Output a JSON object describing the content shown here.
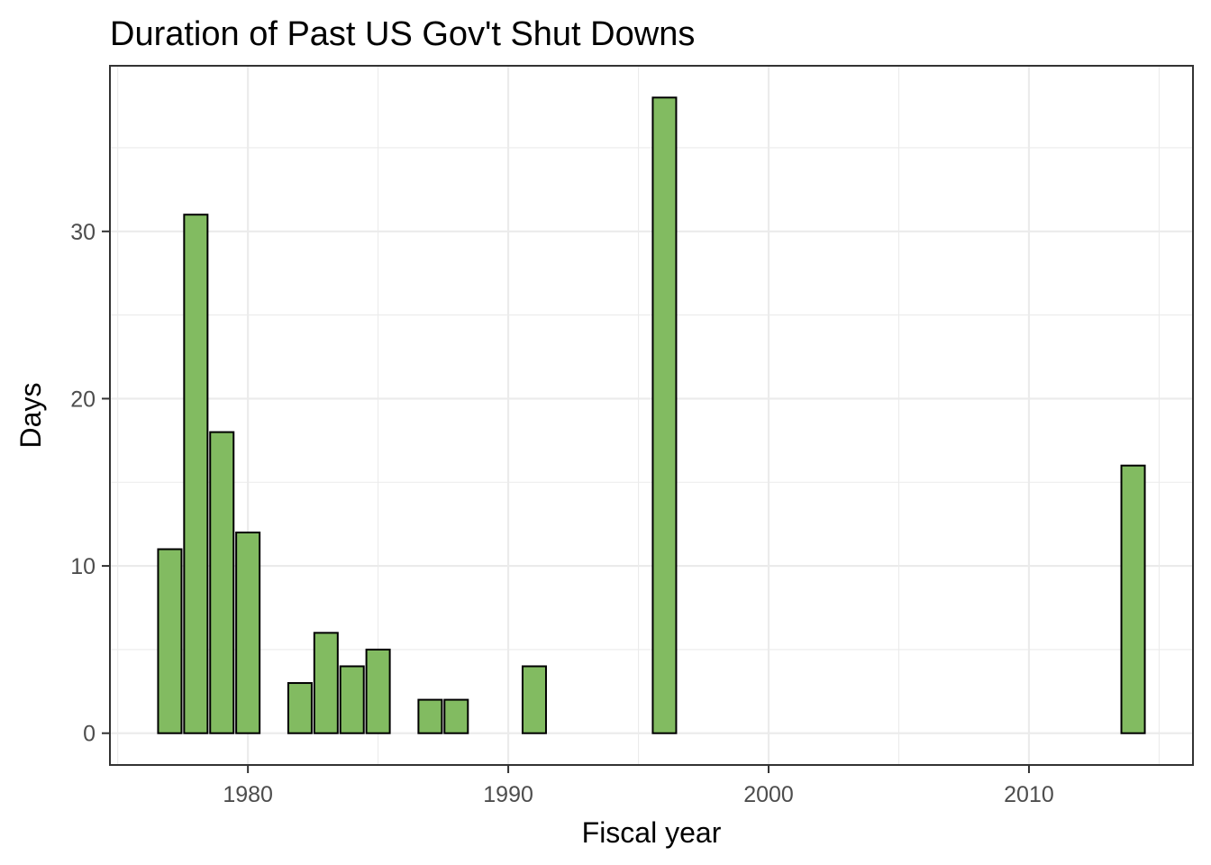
{
  "chart_data": {
    "type": "bar",
    "title": "Duration of Past US Gov't Shut Downs",
    "xlabel": "Fiscal year",
    "ylabel": "Days",
    "xlim": [
      1974.7,
      2016.3
    ],
    "ylim": [
      -1.9,
      39.9
    ],
    "x_ticks": [
      1980,
      1990,
      2000,
      2010
    ],
    "y_ticks": [
      0,
      10,
      20,
      30
    ],
    "grid": true,
    "legend": "none",
    "bar_color": "#82bb61",
    "bar_outline": "#000000",
    "x": [
      1977,
      1978,
      1979,
      1980,
      1982,
      1983,
      1984,
      1985,
      1987,
      1988,
      1991,
      1996,
      2014
    ],
    "values": [
      11,
      31,
      18,
      12,
      3,
      6,
      4,
      5,
      2,
      2,
      4,
      38,
      16
    ]
  }
}
